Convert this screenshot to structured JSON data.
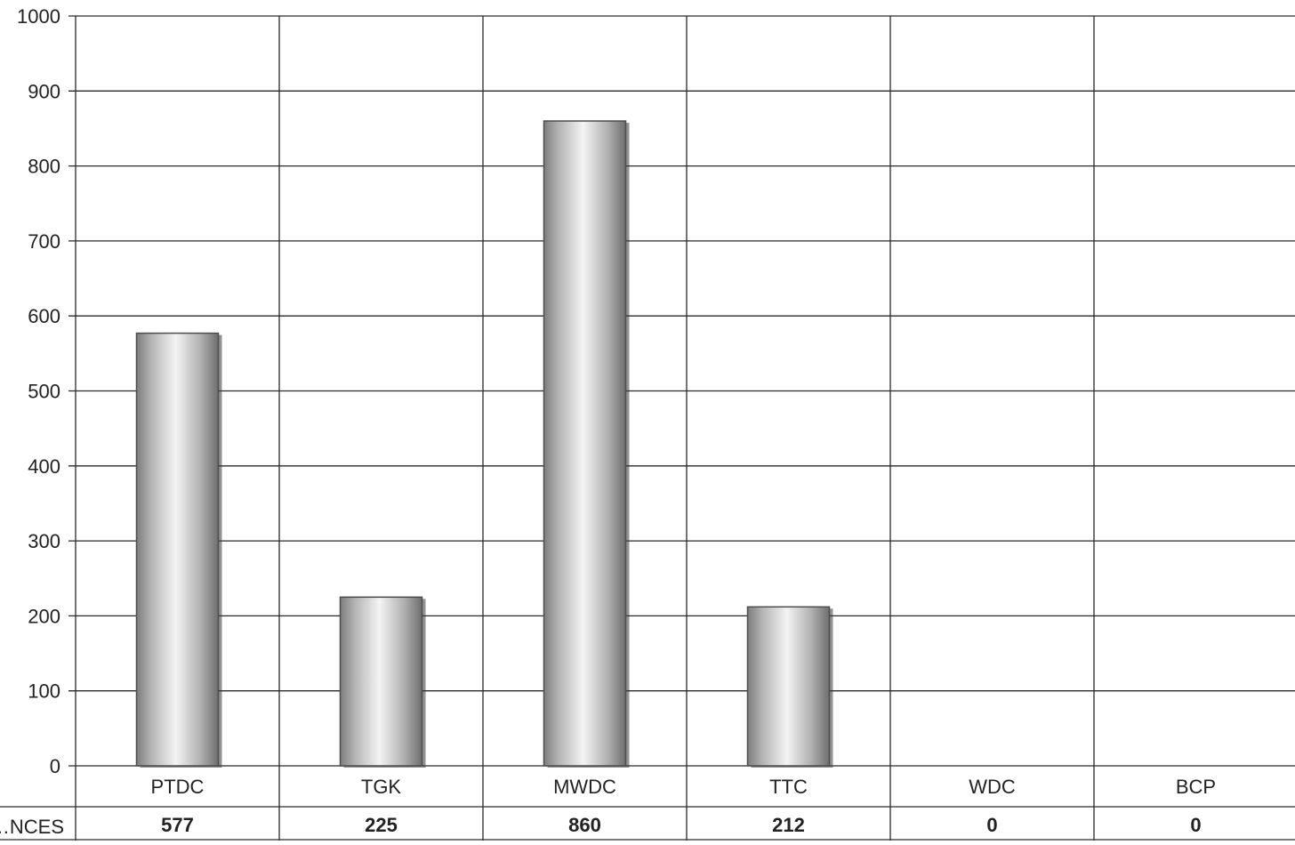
{
  "chart_data": {
    "type": "bar",
    "categories": [
      "PTDC",
      "TGK",
      "MWDC",
      "TTC",
      "WDC",
      "BCP"
    ],
    "series": [
      {
        "name": "…NCES",
        "values": [
          577,
          225,
          860,
          212,
          0,
          0
        ]
      }
    ],
    "ylim": [
      0,
      1000
    ],
    "yticks": [
      0,
      100,
      200,
      300,
      400,
      500,
      600,
      700,
      800,
      900,
      1000
    ],
    "grid": true,
    "legend": "none",
    "data_table": true,
    "table_row_label": "…NCES",
    "colors": {
      "grid": "#2a2a2a",
      "bar_edge": "#4d4d4d",
      "bar_dark": "#8a8a8a",
      "bar_light": "#f2f2f2",
      "text": "#222222"
    }
  }
}
